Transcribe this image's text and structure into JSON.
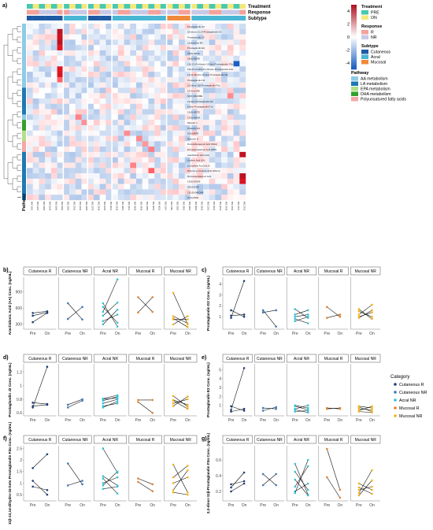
{
  "panel_labels": [
    "a)",
    "b)",
    "c)",
    "d)",
    "e)",
    "f)",
    "g)"
  ],
  "heatmap": {
    "annotation_rows": [
      "Treatment",
      "Response",
      "Subtype"
    ],
    "pathway_axis_label": "Pathway",
    "colorbar_ticks": [
      "4",
      "2",
      "0",
      "-2",
      "-4"
    ],
    "legends": {
      "treatment": {
        "title": "Treatment",
        "items": [
          {
            "label": "PRE",
            "color": "#48c9b0"
          },
          {
            "label": "ON",
            "color": "#f4e87c"
          }
        ]
      },
      "response": {
        "title": "Response",
        "items": [
          {
            "label": "R",
            "color": "#f4a29a"
          },
          {
            "label": "NR",
            "color": "#c7c9e6"
          }
        ]
      },
      "subtype": {
        "title": "Subtype",
        "items": [
          {
            "label": "Cutaneous",
            "color": "#1f5aa5"
          },
          {
            "label": "Acral",
            "color": "#49b6d4"
          },
          {
            "label": "Mucosal",
            "color": "#f08a3a"
          }
        ]
      },
      "pathway": {
        "title": "Pathway",
        "items": [
          {
            "label": "AA metabolism",
            "color": "#8ecae6"
          },
          {
            "label": "LA metabolism",
            "color": "#1f78b4"
          },
          {
            "label": "EPA metabolism",
            "color": "#b2df8a"
          },
          {
            "label": "DHA metabolism",
            "color": "#33a02c"
          },
          {
            "label": "Polyunsatured fatty acids",
            "color": "#f4a7a7"
          }
        ]
      }
    },
    "row_labels": [
      "Prostaglandin A2",
      "15-deoxy-12,14-Prostaglandin D2",
      "Prostaglandin J2",
      "Leukotriene B4",
      "Prostaglandin E2",
      "15(S)-HETE",
      "15(S)-HEPE",
      "11β,13,14-dihydro-15-keto Prostaglandin F2α",
      "11β-13,14-dihydro-15-keto Prostaglandin F2α",
      "13,14-dihydro-15-keto Prostaglandin D2",
      "Prostaglandin D2",
      "2,3-dinor-11β-Prostaglandin F2α",
      "13-OxoODE",
      "9(10)-DiHOME",
      "19-keto-Prostaglandin E2",
      "6-keto-Prostaglandin F1α",
      "12(S)-HETE",
      "17(S)-HDHA",
      "Maresin 1",
      "Protectin D1",
      "5(S)-HEPE",
      "Resolvin D",
      "Docosahexaenoic Acid (DHA)",
      "Eicosapentaenoic Acid (EPA)",
      "Arachidonic Acid (AA)",
      "Linoleic Acid (LA)",
      "α-Linolenic Acid (ALA)",
      "Dihomo-γ-Linolenic Acid (DGLA)",
      "Docosapentaenoic Acid",
      "13(S)-HODE",
      "9(S)-HODE",
      "12(13)-DiHOME",
      "9-OxoODE"
    ],
    "column_labels": [
      "MS 1301",
      "MS 1310",
      "MS 1505",
      "MS 1519",
      "MS 1506",
      "MS 1500",
      "MS 2200",
      "MS 2261",
      "MS 2262",
      "MS 2305",
      "MS 2275",
      "MS 2318",
      "MS 1003",
      "MS 3012",
      "MS 2319",
      "MS 4004",
      "MS 4211",
      "MS 4325",
      "MS 4319",
      "MS 3250",
      "MS 4001",
      "MS 4010",
      "MS 1114",
      "MS 1150",
      "MS 2300",
      "MS 3301",
      "MS 3302",
      "MS 3000",
      "MS 3316",
      "MS 1201",
      "MS 3022",
      "MS 3023",
      "MS 3218",
      "MS 2210",
      "MS 2211",
      "MS 2213"
    ]
  },
  "chart_data": [
    {
      "panel": "b)",
      "type": "line",
      "ylabel": "Arachidonic Acid (AA) Conc. (ng/mL)",
      "x_categories": [
        "Pre",
        "On"
      ],
      "ylim": [
        240,
        1140
      ],
      "yticks": [
        300,
        600,
        900
      ],
      "facets": [
        {
          "title": "Cutaneous R",
          "category": "Cutaneous R",
          "pairs": [
            [
              340,
              510
            ],
            [
              460,
              520
            ],
            [
              510,
              540
            ]
          ]
        },
        {
          "title": "Cutaneous NR",
          "category": "Cutaneous NR",
          "pairs": [
            [
              690,
              390
            ],
            [
              400,
              620
            ]
          ]
        },
        {
          "title": "Acral NR",
          "category": "Acral NR",
          "pairs": [
            [
              530,
              1130
            ],
            [
              690,
              260
            ],
            [
              460,
              700
            ],
            [
              360,
              480
            ],
            [
              620,
              330
            ],
            [
              300,
              570
            ]
          ]
        },
        {
          "title": "Mucosal R",
          "category": "Mucosal R",
          "pairs": [
            [
              800,
              530
            ],
            [
              520,
              800
            ]
          ]
        },
        {
          "title": "Mucosal NR",
          "category": "Mucosal NR",
          "pairs": [
            [
              880,
              300
            ],
            [
              300,
              450
            ],
            [
              450,
              320
            ],
            [
              390,
              390
            ],
            [
              410,
              250
            ]
          ]
        }
      ]
    },
    {
      "panel": "c)",
      "type": "line",
      "ylabel": "Prostaglandin D2 Conc. (ng/mL)",
      "x_categories": [
        "Pre",
        "On"
      ],
      "ylim": [
        0,
        4.5
      ],
      "yticks": [
        1,
        2,
        3,
        4
      ],
      "facets": [
        {
          "title": "Cutaneous R",
          "category": "Cutaneous R",
          "pairs": [
            [
              0.9,
              4.3
            ],
            [
              1.1,
              1.2
            ],
            [
              1.6,
              1.0
            ]
          ]
        },
        {
          "title": "Cutaneous NR",
          "category": "Cutaneous NR",
          "pairs": [
            [
              1.6,
              0.1
            ],
            [
              1.4,
              1.6
            ]
          ]
        },
        {
          "title": "Acral NR",
          "category": "Acral NR",
          "pairs": [
            [
              1.2,
              1.6
            ],
            [
              0.8,
              0.4
            ],
            [
              1.7,
              0.9
            ],
            [
              1.0,
              1.2
            ],
            [
              0.6,
              1.0
            ]
          ]
        },
        {
          "title": "Mucosal R",
          "category": "Mucosal R",
          "pairs": [
            [
              1.9,
              1.0
            ],
            [
              0.9,
              1.2
            ]
          ]
        },
        {
          "title": "Mucosal NR",
          "category": "Mucosal NR",
          "pairs": [
            [
              1.7,
              0.8
            ],
            [
              1.2,
              2.1
            ],
            [
              1.5,
              1.0
            ],
            [
              1.0,
              1.4
            ],
            [
              0.9,
              1.6
            ]
          ]
        }
      ]
    },
    {
      "panel": "d)",
      "type": "line",
      "ylabel": "Prostaglandin J2 Conc. (ng/mL)",
      "x_categories": [
        "Pre",
        "On"
      ],
      "ylim": [
        0.58,
        1.3
      ],
      "yticks": [
        0.6,
        0.8,
        1.0,
        1.2
      ],
      "facets": [
        {
          "title": "Cutaneous R",
          "category": "Cutaneous R",
          "pairs": [
            [
              0.68,
              1.28
            ],
            [
              0.7,
              0.72
            ],
            [
              0.75,
              0.73
            ]
          ]
        },
        {
          "title": "Cutaneous NR",
          "category": "Cutaneous NR",
          "pairs": [
            [
              0.72,
              0.8
            ],
            [
              0.68,
              0.78
            ]
          ]
        },
        {
          "title": "Acral NR",
          "category": "Acral NR",
          "pairs": [
            [
              0.78,
              0.84
            ],
            [
              0.74,
              0.8
            ],
            [
              0.8,
              0.82
            ],
            [
              0.68,
              0.77
            ],
            [
              0.81,
              0.86
            ],
            [
              0.7,
              0.74
            ]
          ]
        },
        {
          "title": "Mucosal R",
          "category": "Mucosal R",
          "pairs": [
            [
              0.79,
              0.79
            ],
            [
              0.76,
              0.6
            ]
          ]
        },
        {
          "title": "Mucosal NR",
          "category": "Mucosal NR",
          "pairs": [
            [
              0.85,
              0.69
            ],
            [
              0.74,
              0.8
            ],
            [
              0.79,
              0.72
            ],
            [
              0.7,
              0.84
            ],
            [
              0.78,
              0.66
            ]
          ]
        }
      ]
    },
    {
      "panel": "e)",
      "type": "line",
      "ylabel": "Prostaglandin E2 Conc. (ng/mL)",
      "x_categories": [
        "Pre",
        "On"
      ],
      "ylim": [
        0,
        5.5
      ],
      "yticks": [
        1,
        2,
        3,
        4,
        5
      ],
      "facets": [
        {
          "title": "Cutaneous R",
          "category": "Cutaneous R",
          "pairs": [
            [
              0.5,
              5.2
            ],
            [
              0.9,
              0.4
            ],
            [
              0.3,
              0.6
            ]
          ]
        },
        {
          "title": "Cutaneous NR",
          "category": "Cutaneous NR",
          "pairs": [
            [
              0.7,
              0.6
            ],
            [
              0.4,
              0.8
            ]
          ]
        },
        {
          "title": "Acral NR",
          "category": "Acral NR",
          "pairs": [
            [
              0.9,
              0.5
            ],
            [
              0.6,
              1.0
            ],
            [
              0.3,
              0.4
            ],
            [
              1.0,
              0.7
            ],
            [
              0.5,
              0.2
            ]
          ]
        },
        {
          "title": "Mucosal R",
          "category": "Mucosal R",
          "pairs": [
            [
              0.7,
              0.6
            ],
            [
              0.6,
              0.7
            ]
          ]
        },
        {
          "title": "Mucosal NR",
          "category": "Mucosal NR",
          "pairs": [
            [
              0.4,
              0.9
            ],
            [
              0.8,
              0.3
            ],
            [
              0.6,
              0.5
            ],
            [
              0.3,
              0.2
            ],
            [
              0.9,
              0.7
            ]
          ]
        }
      ]
    },
    {
      "panel": "f)",
      "type": "line",
      "ylabel": "11β-13,14-dihydro-15-keto Prostaglandin F2α Conc. (ng/mL)",
      "x_categories": [
        "Pre",
        "On"
      ],
      "ylim": [
        0.3,
        2.55
      ],
      "yticks": [
        0.5,
        1.0,
        1.5,
        2.0,
        2.5
      ],
      "facets": [
        {
          "title": "Cutaneous R",
          "category": "Cutaneous R",
          "pairs": [
            [
              1.65,
              2.25
            ],
            [
              1.1,
              0.5
            ],
            [
              0.85,
              0.7
            ]
          ]
        },
        {
          "title": "Cutaneous NR",
          "category": "Cutaneous NR",
          "pairs": [
            [
              1.85,
              0.95
            ],
            [
              0.9,
              1.1
            ]
          ]
        },
        {
          "title": "Acral NR",
          "category": "Acral NR",
          "pairs": [
            [
              2.5,
              1.45
            ],
            [
              1.3,
              0.9
            ],
            [
              1.2,
              0.55
            ],
            [
              1.0,
              1.25
            ],
            [
              0.75,
              0.85
            ],
            [
              0.9,
              1.5
            ]
          ]
        },
        {
          "title": "Mucosal R",
          "category": "Mucosal R",
          "pairs": [
            [
              1.2,
              0.95
            ],
            [
              1.05,
              0.65
            ]
          ]
        },
        {
          "title": "Mucosal NR",
          "category": "Mucosal NR",
          "pairs": [
            [
              1.8,
              0.6
            ],
            [
              0.7,
              1.55
            ],
            [
              1.25,
              1.75
            ],
            [
              1.0,
              1.25
            ],
            [
              0.6,
              0.5
            ]
          ]
        }
      ]
    },
    {
      "panel": "g)",
      "type": "line",
      "ylabel": "2,3-dinor-11β-Prostaglandin F2α Conc. (ng/mL)",
      "x_categories": [
        "Pre",
        "On"
      ],
      "ylim": [
        0.1,
        0.76
      ],
      "yticks": [
        0.2,
        0.4,
        0.6
      ],
      "facets": [
        {
          "title": "Cutaneous R",
          "category": "Cutaneous R",
          "pairs": [
            [
              0.25,
              0.44
            ],
            [
              0.29,
              0.33
            ],
            [
              0.2,
              0.3
            ]
          ]
        },
        {
          "title": "Cutaneous NR",
          "category": "Cutaneous NR",
          "pairs": [
            [
              0.28,
              0.42
            ],
            [
              0.42,
              0.28
            ]
          ]
        },
        {
          "title": "Acral NR",
          "category": "Acral NR",
          "pairs": [
            [
              0.55,
              0.16
            ],
            [
              0.26,
              0.52
            ],
            [
              0.45,
              0.22
            ],
            [
              0.2,
              0.3
            ],
            [
              0.35,
              0.15
            ],
            [
              0.18,
              0.6
            ]
          ]
        },
        {
          "title": "Mucosal R",
          "category": "Mucosal R",
          "pairs": [
            [
              0.74,
              0.22
            ],
            [
              0.38,
              0.12
            ]
          ]
        },
        {
          "title": "Mucosal NR",
          "category": "Mucosal NR",
          "pairs": [
            [
              0.18,
              0.47
            ],
            [
              0.25,
              0.17
            ],
            [
              0.3,
              0.22
            ],
            [
              0.22,
              0.26
            ],
            [
              0.15,
              0.34
            ]
          ]
        }
      ]
    }
  ],
  "category_legend": {
    "title": "Category",
    "items": [
      {
        "label": "Cutaneous R",
        "color": "#1f3d7a"
      },
      {
        "label": "Cutaneous NR",
        "color": "#3a7bbf"
      },
      {
        "label": "Acral NR",
        "color": "#35c2d6"
      },
      {
        "label": "Mucosal R",
        "color": "#e8832a"
      },
      {
        "label": "Mucosal NR",
        "color": "#f2b41c"
      }
    ]
  }
}
